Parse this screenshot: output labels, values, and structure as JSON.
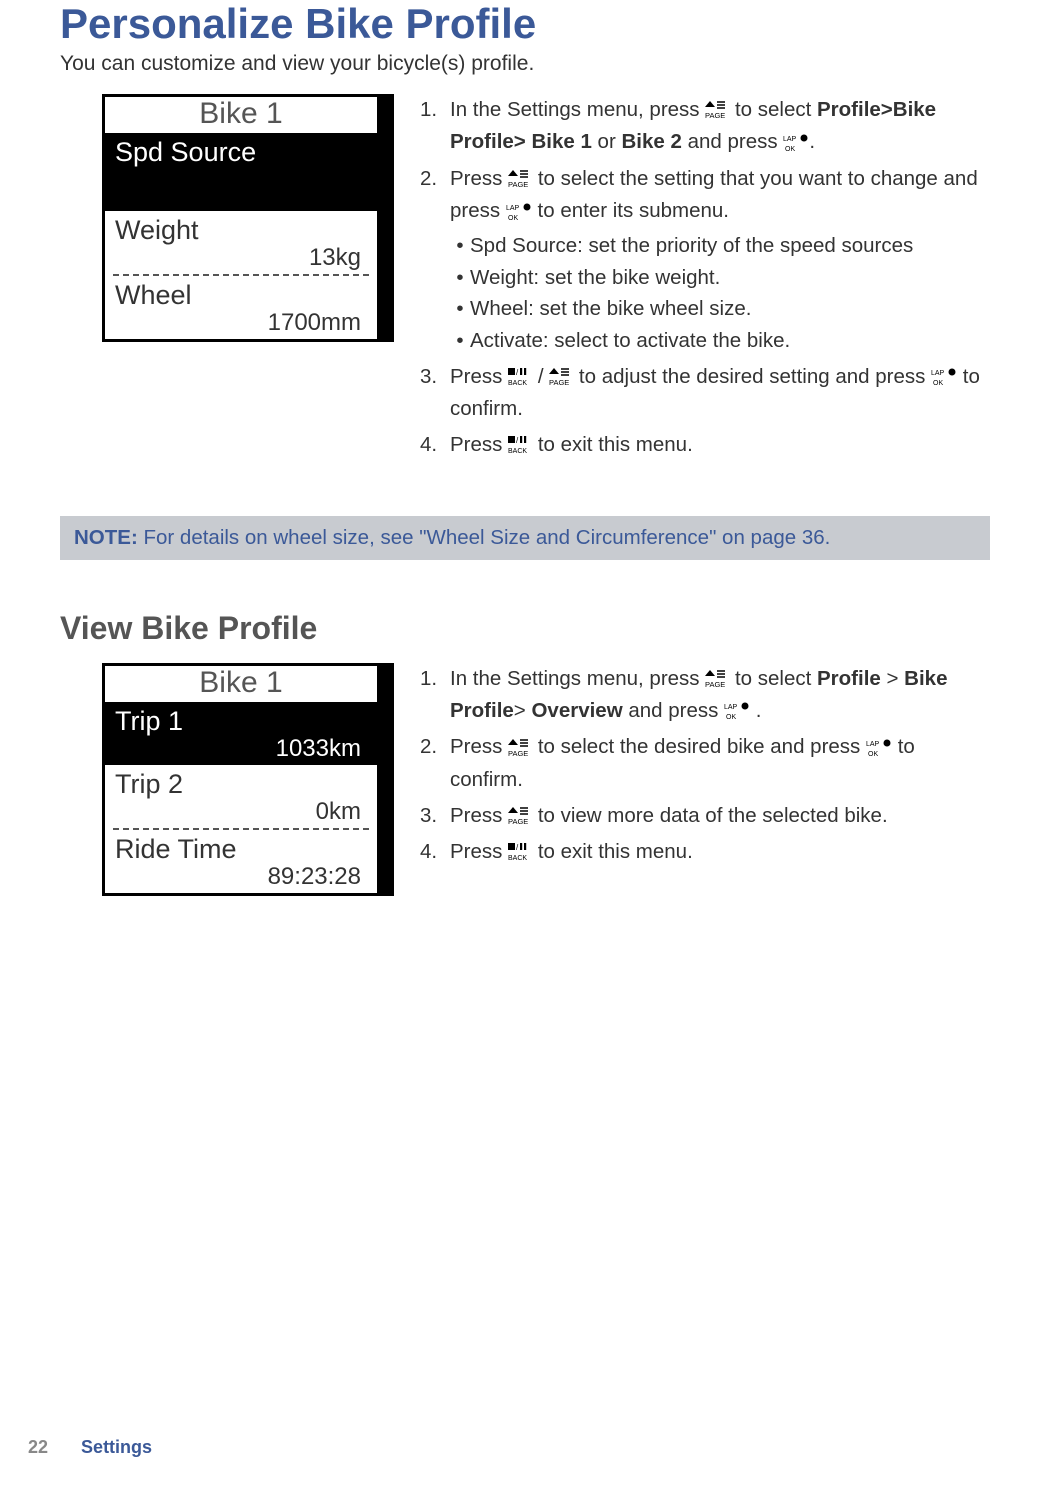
{
  "title": "Personalize Bike Profile",
  "intro": "You can customize and view your bicycle(s) profile.",
  "device1": {
    "title": "Bike 1",
    "rows": [
      {
        "label": "Spd Source",
        "value": "",
        "selected": true,
        "tall": true
      },
      {
        "label": "Weight",
        "value": "13kg",
        "selected": false
      },
      {
        "label": "Wheel",
        "value": "1700mm",
        "selected": false
      }
    ]
  },
  "steps1": {
    "s1a": "In the Settings menu, press ",
    "s1b": " to select ",
    "s1_path": "Profile>Bike Profile> Bike 1",
    "s1_or": " or ",
    "s1_bike2": "Bike 2",
    "s1c": " and press",
    "s1d": ".",
    "s2a": "Press ",
    "s2b": " to select the setting that you want to change and press ",
    "s2c": " to enter its submenu.",
    "bullets": [
      "Spd Source: set the priority of the speed sources",
      "Weight: set the bike weight.",
      "Wheel: set the bike wheel size.",
      "Activate: select to activate the bike."
    ],
    "s3a": "Press ",
    "s3b": "/",
    "s3c": " to adjust the desired setting and press ",
    "s3d": " to confirm.",
    "s4a": "Press ",
    "s4b": " to exit this menu."
  },
  "note_label": "NOTE:",
  "note_text": " For details on wheel size, see \"Wheel Size and Circumference\" on page 36.",
  "h2": "View Bike Profile",
  "device2": {
    "title": "Bike 1",
    "rows": [
      {
        "label": "Trip 1",
        "value": "1033km",
        "selected": true
      },
      {
        "label": "Trip 2",
        "value": "0km",
        "selected": false
      },
      {
        "label": "Ride Time",
        "value": "89:23:28",
        "selected": false
      }
    ]
  },
  "steps2": {
    "s1a": "In the Settings menu, press ",
    "s1b": " to select ",
    "s1_path1": "Profile",
    "s1_gt1": " > ",
    "s1_path2": "Bike Profile",
    "s1_gt2": "> ",
    "s1_path3": "Overview",
    "s1c": " and press ",
    "s1d": " .",
    "s2a": "Press ",
    "s2b": " to select the desired bike and press ",
    "s2c": " to confirm.",
    "s3a": "Press ",
    "s3b": " to view more data of the selected bike.",
    "s4a": "Press ",
    "s4b": " to exit this menu."
  },
  "footer": {
    "page": "22",
    "section": "Settings"
  }
}
